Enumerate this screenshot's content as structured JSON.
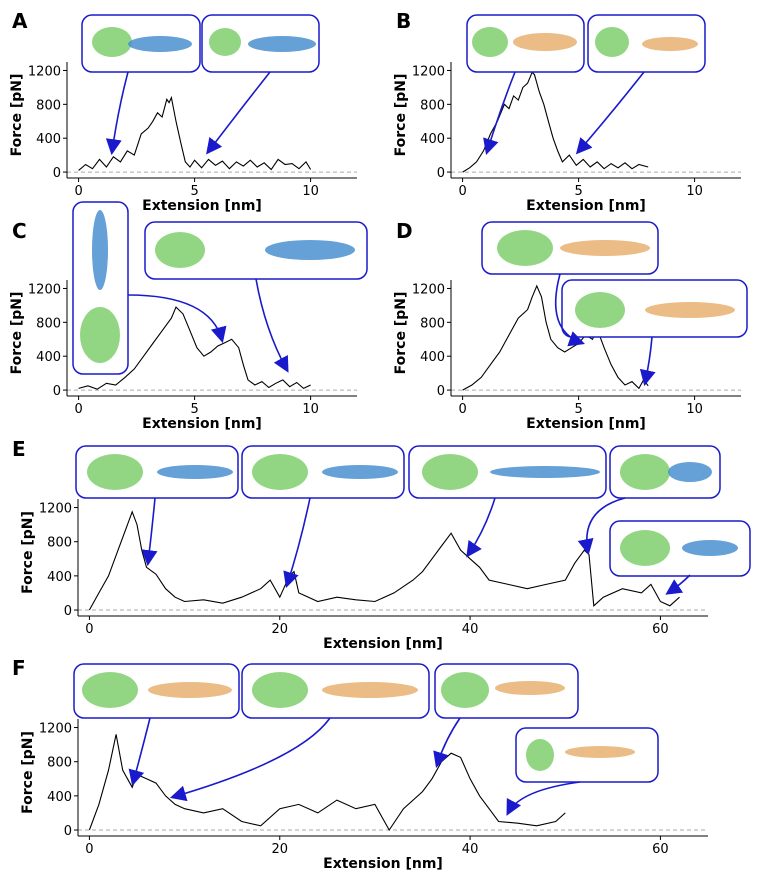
{
  "chart_data": [
    {
      "type": "line",
      "label": "A",
      "xlabel": "Extension [nm]",
      "ylabel": "Force [pN]",
      "color": "#000000",
      "x": [
        0,
        0.3,
        0.6,
        0.9,
        1.2,
        1.5,
        1.8,
        2.1,
        2.4,
        2.7,
        3.0,
        3.2,
        3.4,
        3.6,
        3.8,
        3.9,
        4.0,
        4.2,
        4.4,
        4.6,
        4.8,
        5.0,
        5.3,
        5.6,
        5.9,
        6.2,
        6.5,
        6.8,
        7.1,
        7.4,
        7.7,
        8.0,
        8.3,
        8.6,
        8.9,
        9.2,
        9.5,
        9.8,
        10.0
      ],
      "values": [
        20,
        90,
        40,
        150,
        60,
        180,
        120,
        250,
        200,
        450,
        520,
        600,
        700,
        650,
        860,
        820,
        880,
        600,
        350,
        120,
        60,
        140,
        50,
        150,
        80,
        130,
        40,
        120,
        70,
        140,
        60,
        110,
        30,
        150,
        90,
        100,
        40,
        120,
        30
      ],
      "xlim": [
        -0.5,
        12
      ],
      "ylim": [
        -70,
        1300
      ],
      "xticks": [
        0,
        5,
        10
      ],
      "yticks": [
        0,
        400,
        800,
        1200
      ]
    },
    {
      "type": "line",
      "label": "B",
      "xlabel": "Extension [nm]",
      "ylabel": "Force [pN]",
      "color": "#000000",
      "x": [
        0,
        0.3,
        0.6,
        0.9,
        1.2,
        1.5,
        1.8,
        2.0,
        2.2,
        2.4,
        2.6,
        2.8,
        3.0,
        3.1,
        3.3,
        3.5,
        3.7,
        3.9,
        4.1,
        4.3,
        4.6,
        4.9,
        5.2,
        5.5,
        5.8,
        6.1,
        6.4,
        6.7,
        7.0,
        7.3,
        7.6,
        8.0
      ],
      "values": [
        0,
        50,
        120,
        250,
        450,
        600,
        800,
        750,
        900,
        850,
        1000,
        1050,
        1180,
        1150,
        950,
        800,
        600,
        400,
        250,
        120,
        200,
        80,
        150,
        60,
        120,
        40,
        100,
        50,
        110,
        40,
        90,
        60
      ],
      "xlim": [
        -0.5,
        12
      ],
      "ylim": [
        -70,
        1300
      ],
      "xticks": [
        0,
        5,
        10
      ],
      "yticks": [
        0,
        400,
        800,
        1200
      ]
    },
    {
      "type": "line",
      "label": "C",
      "xlabel": "Extension [nm]",
      "ylabel": "Force [pN]",
      "color": "#000000",
      "x": [
        0,
        0.4,
        0.8,
        1.2,
        1.6,
        2.0,
        2.4,
        2.8,
        3.2,
        3.6,
        4.0,
        4.2,
        4.5,
        4.8,
        5.1,
        5.4,
        5.7,
        6.0,
        6.3,
        6.6,
        6.9,
        7.1,
        7.3,
        7.6,
        7.9,
        8.2,
        8.5,
        8.8,
        9.1,
        9.4,
        9.7,
        10.0
      ],
      "values": [
        20,
        50,
        10,
        80,
        60,
        150,
        250,
        400,
        550,
        700,
        850,
        980,
        900,
        700,
        500,
        400,
        450,
        520,
        560,
        600,
        500,
        300,
        120,
        60,
        100,
        30,
        80,
        120,
        40,
        90,
        20,
        60
      ],
      "xlim": [
        -0.5,
        12
      ],
      "ylim": [
        -70,
        1300
      ],
      "xticks": [
        0,
        5,
        10
      ],
      "yticks": [
        0,
        400,
        800,
        1200
      ]
    },
    {
      "type": "line",
      "label": "D",
      "xlabel": "Extension [nm]",
      "ylabel": "Force [pN]",
      "color": "#000000",
      "x": [
        0,
        0.4,
        0.8,
        1.2,
        1.6,
        2.0,
        2.4,
        2.8,
        3.0,
        3.2,
        3.4,
        3.6,
        3.8,
        4.1,
        4.4,
        4.7,
        5.0,
        5.3,
        5.6,
        5.8,
        6.1,
        6.4,
        6.7,
        7.0,
        7.3,
        7.6,
        7.8,
        8.0
      ],
      "values": [
        0,
        60,
        150,
        300,
        450,
        650,
        850,
        950,
        1100,
        1230,
        1100,
        800,
        600,
        500,
        450,
        500,
        550,
        650,
        600,
        720,
        500,
        300,
        150,
        60,
        100,
        20,
        120,
        50
      ],
      "xlim": [
        -0.5,
        12
      ],
      "ylim": [
        -70,
        1300
      ],
      "xticks": [
        0,
        5,
        10
      ],
      "yticks": [
        0,
        400,
        800,
        1200
      ]
    },
    {
      "type": "line",
      "label": "E",
      "xlabel": "Extension [nm]",
      "ylabel": "Force [pN]",
      "color": "#000000",
      "x": [
        0,
        1,
        2,
        3,
        4,
        4.5,
        5,
        5.5,
        6,
        7,
        8,
        9,
        10,
        12,
        14,
        16,
        18,
        19,
        20,
        21,
        21.5,
        22,
        24,
        26,
        28,
        30,
        32,
        34,
        35,
        36,
        37,
        38,
        39,
        40,
        41,
        42,
        44,
        46,
        48,
        50,
        51,
        52,
        52.5,
        53,
        54,
        56,
        58,
        59,
        60,
        61,
        62
      ],
      "values": [
        0,
        200,
        400,
        700,
        1000,
        1150,
        1000,
        700,
        500,
        420,
        250,
        150,
        100,
        120,
        80,
        150,
        250,
        350,
        150,
        400,
        450,
        200,
        100,
        150,
        120,
        100,
        200,
        350,
        450,
        600,
        750,
        900,
        700,
        600,
        500,
        350,
        300,
        250,
        300,
        350,
        550,
        700,
        650,
        50,
        150,
        250,
        200,
        300,
        100,
        50,
        150
      ],
      "xlim": [
        -1.2,
        65
      ],
      "ylim": [
        -70,
        1300
      ],
      "xticks": [
        0,
        20,
        40,
        60
      ],
      "yticks": [
        0,
        400,
        800,
        1200
      ]
    },
    {
      "type": "line",
      "label": "F",
      "xlabel": "Extension [nm]",
      "ylabel": "Force [pN]",
      "color": "#000000",
      "x": [
        0,
        1,
        2,
        2.8,
        3.5,
        4.5,
        5,
        6,
        7,
        8,
        9,
        10,
        12,
        14,
        16,
        18,
        20,
        22,
        24,
        26,
        28,
        30,
        31.5,
        33,
        35,
        36,
        37,
        38,
        39,
        40,
        41,
        42,
        43,
        45,
        47,
        49,
        50
      ],
      "values": [
        0,
        300,
        700,
        1120,
        700,
        500,
        650,
        600,
        550,
        400,
        300,
        250,
        200,
        250,
        100,
        50,
        250,
        300,
        200,
        350,
        250,
        300,
        0,
        250,
        450,
        600,
        800,
        900,
        850,
        600,
        400,
        250,
        100,
        80,
        50,
        100,
        200
      ],
      "xlim": [
        -1.2,
        65
      ],
      "ylim": [
        -70,
        1300
      ],
      "xticks": [
        0,
        20,
        40,
        60
      ],
      "yticks": [
        0,
        400,
        800,
        1200
      ]
    }
  ]
}
